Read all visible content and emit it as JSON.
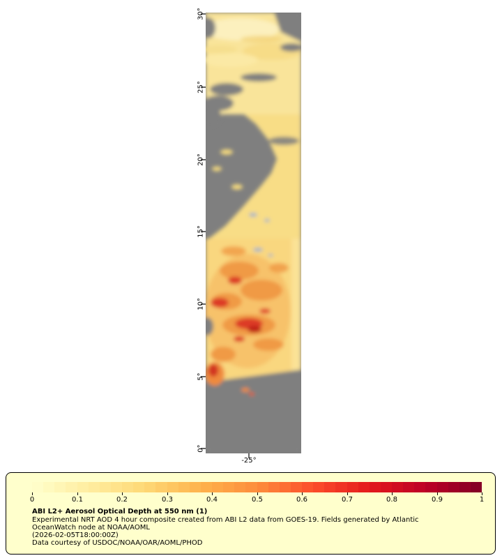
{
  "map": {
    "lat_tick_labels": [
      "30°",
      "25°",
      "20°",
      "15°",
      "10°",
      "5°",
      "0°"
    ],
    "lon_tick_labels": [
      "-25°"
    ],
    "no_data_color": "#7f7f7f"
  },
  "legend": {
    "background": "#ffffcc",
    "border_color": "#000000",
    "colorbar": {
      "tick_labels": [
        "0",
        "0.1",
        "0.2",
        "0.3",
        "0.4",
        "0.5",
        "0.6",
        "0.7",
        "0.8",
        "0.9",
        "1"
      ],
      "palette": [
        "#ffffcc",
        "#ffeda0",
        "#fed976",
        "#feb24c",
        "#fd8d3c",
        "#fc4e2a",
        "#e31a1c",
        "#bd0026",
        "#800026"
      ],
      "segments": 40
    },
    "title": "ABI L2+ Aerosol Optical Depth at 550 nm (1)",
    "description_line1": "Experimental NRT AOD 4 hour composite created from ABI L2 data from GOES-19. Fields generated by Atlantic",
    "description_line2": "OceanWatch node at NOAA/AOML",
    "timestamp": "(2026-02-05T18:00:00Z)",
    "credit": "Data courtesy of USDOC/NOAA/OAR/AOML/PHOD"
  },
  "chart_data": {
    "type": "heatmap",
    "title": "ABI L2+ Aerosol Optical Depth at 550 nm (1)",
    "variable": "Aerosol Optical Depth at 550 nm",
    "colorbar": {
      "min": 0,
      "max": 1,
      "ticks": [
        0,
        0.1,
        0.2,
        0.3,
        0.4,
        0.5,
        0.6,
        0.7,
        0.8,
        0.9,
        1
      ],
      "palette": [
        "#ffffcc",
        "#ffeda0",
        "#fed976",
        "#feb24c",
        "#fd8d3c",
        "#fc4e2a",
        "#e31a1c",
        "#bd0026",
        "#800026"
      ]
    },
    "y_axis_ticks_deg": [
      30,
      25,
      20,
      15,
      10,
      5,
      0
    ],
    "x_axis_ticks_deg": [
      -25
    ],
    "no_data_color": "#7f7f7f"
  }
}
